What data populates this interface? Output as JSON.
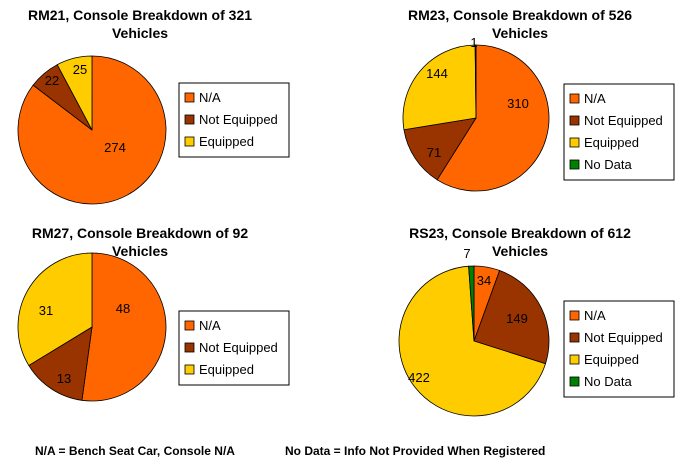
{
  "chart_data": [
    {
      "type": "pie",
      "title": [
        "RM21, Console Breakdown of 321",
        "Vehicles"
      ],
      "slices": [
        {
          "label": "N/A",
          "value": 274,
          "color": "#FF6600"
        },
        {
          "label": "Not Equipped",
          "value": 22,
          "color": "#993300"
        },
        {
          "label": "Equipped",
          "value": 25,
          "color": "#FFCC00"
        }
      ],
      "legend": [
        "N/A",
        "Not Equipped",
        "Equipped"
      ]
    },
    {
      "type": "pie",
      "title": [
        "RM23, Console Breakdown of 526",
        "Vehicles"
      ],
      "slices": [
        {
          "label": "N/A",
          "value": 310,
          "color": "#FF6600"
        },
        {
          "label": "Not Equipped",
          "value": 71,
          "color": "#993300"
        },
        {
          "label": "Equipped",
          "value": 144,
          "color": "#FFCC00"
        },
        {
          "label": "No Data",
          "value": 1,
          "color": "#008000"
        }
      ],
      "legend": [
        "N/A",
        "Not Equipped",
        "Equipped",
        "No Data"
      ]
    },
    {
      "type": "pie",
      "title": [
        "RM27, Console Breakdown of 92",
        "Vehicles"
      ],
      "slices": [
        {
          "label": "N/A",
          "value": 48,
          "color": "#FF6600"
        },
        {
          "label": "Not Equipped",
          "value": 13,
          "color": "#993300"
        },
        {
          "label": "Equipped",
          "value": 31,
          "color": "#FFCC00"
        }
      ],
      "legend": [
        "N/A",
        "Not Equipped",
        "Equipped"
      ]
    },
    {
      "type": "pie",
      "title": [
        "RS23, Console Breakdown of 612",
        "Vehicles"
      ],
      "slices": [
        {
          "label": "N/A",
          "value": 34,
          "color": "#FF6600"
        },
        {
          "label": "Not Equipped",
          "value": 149,
          "color": "#993300"
        },
        {
          "label": "Equipped",
          "value": 422,
          "color": "#FFCC00"
        },
        {
          "label": "No Data",
          "value": 7,
          "color": "#008000"
        }
      ],
      "legend": [
        "N/A",
        "Not Equipped",
        "Equipped",
        "No Data"
      ]
    }
  ],
  "footnotes": {
    "na": "N/A = Bench Seat Car, Console N/A",
    "nodata": "No Data = Info Not Provided When Registered"
  }
}
